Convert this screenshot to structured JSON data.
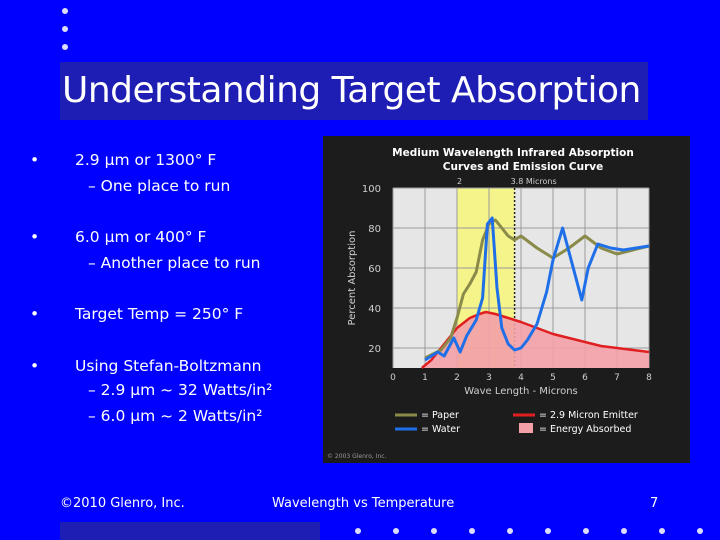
{
  "slide": {
    "title": "Understanding Target Absorption",
    "bullets": [
      {
        "marker": "•",
        "text": "2.9 µm or 1300° F",
        "subs": [
          "– One place to run"
        ]
      },
      {
        "marker": "•",
        "text": "6.0 µm or 400° F",
        "subs": [
          "– Another place to run"
        ]
      },
      {
        "marker": "•",
        "text": "Target Temp = 250° F",
        "subs": []
      },
      {
        "marker": "•",
        "text": "Using Stefan-Boltzmann",
        "subs": [
          "– 2.9 µm ~ 32 Watts/in²",
          "– 6.0 µm ~  2 Watts/in²"
        ]
      }
    ],
    "footer": {
      "copyright": "©2010 Glenro, Inc.",
      "subject": "Wavelength vs Temperature",
      "page": "7"
    }
  },
  "chart_data": {
    "type": "line",
    "title": "Medium Wavelength Infrared Absorption Curves and Emission Curve",
    "xlabel": "Wave Length - Microns",
    "ylabel": "Percent Absorption",
    "xlim": [
      0,
      8
    ],
    "ylim": [
      10,
      100
    ],
    "x_ticks": [
      "0",
      "1",
      "2",
      "3",
      "4",
      "5",
      "6",
      "7",
      "8"
    ],
    "y_ticks": [
      "100",
      "80",
      "60",
      "40",
      "20"
    ],
    "annotations": [
      {
        "text": "2",
        "x": 2
      },
      {
        "text": "3.8 Microns",
        "x": 3.8
      }
    ],
    "highlight_band": [
      2,
      3.8
    ],
    "grid": true,
    "series": [
      {
        "name": "= Paper",
        "color": "#8a8a4a",
        "x": [
          1,
          1.5,
          1.8,
          2,
          2.1,
          2.2,
          2.4,
          2.6,
          2.8,
          3,
          3.2,
          3.4,
          3.6,
          3.8,
          4,
          4.5,
          5,
          5.5,
          6,
          6.5,
          7,
          7.5,
          8
        ],
        "y": [
          15,
          19,
          25,
          35,
          41,
          47,
          52,
          58,
          74,
          82,
          84,
          80,
          76,
          74,
          76,
          70,
          65,
          70,
          76,
          70,
          67,
          69,
          71
        ]
      },
      {
        "name": "= Water",
        "color": "#1f6fe8",
        "x": [
          1,
          1.4,
          1.6,
          1.9,
          2.1,
          2.3,
          2.6,
          2.8,
          2.95,
          3.1,
          3.25,
          3.4,
          3.6,
          3.8,
          4,
          4.2,
          4.5,
          4.8,
          5,
          5.3,
          5.6,
          5.9,
          6.1,
          6.4,
          6.8,
          7.2,
          7.6,
          8
        ],
        "y": [
          14,
          18,
          16,
          25,
          18,
          26,
          34,
          45,
          82,
          85,
          50,
          30,
          22,
          19,
          20,
          24,
          32,
          48,
          64,
          80,
          62,
          44,
          60,
          72,
          70,
          69,
          70,
          71
        ]
      },
      {
        "name": "= 2.9 Micron Emitter",
        "color": "#e02020",
        "x": [
          0.9,
          1.2,
          1.6,
          2,
          2.4,
          2.7,
          2.9,
          3.2,
          3.6,
          4,
          4.5,
          5,
          5.5,
          6,
          6.5,
          7,
          7.5,
          8
        ],
        "y": [
          10,
          14,
          22,
          30,
          35,
          37,
          38,
          37,
          35,
          33,
          30,
          27,
          25,
          23,
          21,
          20,
          19,
          18
        ]
      },
      {
        "name": "= Energy Absorbed",
        "color": "#f4a0a8",
        "x": [
          0.9,
          1.2,
          1.6,
          2,
          2.4,
          2.7,
          2.9,
          3.2,
          3.6,
          4,
          4.5,
          5,
          5.5,
          6,
          6.5,
          7,
          7.5,
          8
        ],
        "y": [
          10,
          14,
          22,
          30,
          35,
          37,
          38,
          37,
          35,
          33,
          30,
          27,
          25,
          23,
          21,
          20,
          19,
          18
        ]
      }
    ],
    "legend": "bottom",
    "credit": "© 2003 Glenro, Inc."
  }
}
